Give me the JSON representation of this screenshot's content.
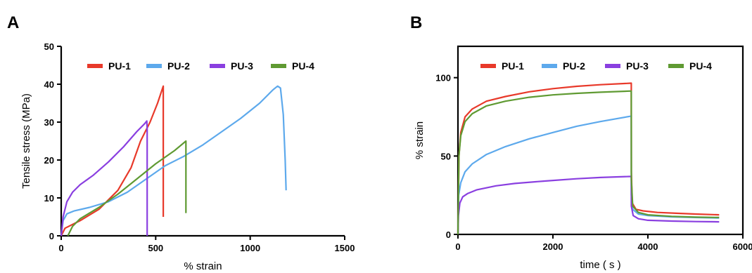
{
  "chart_data": [
    {
      "panel": "A",
      "type": "line",
      "xlabel": "% strain",
      "ylabel": "Tensile stress  (MPa)",
      "xlim": [
        0,
        1500
      ],
      "ylim": [
        0,
        50
      ],
      "xticks": [
        0,
        500,
        1000,
        1500
      ],
      "yticks": [
        0,
        10,
        20,
        30,
        40,
        50
      ],
      "frame": "left-bottom",
      "grid": false,
      "legend_position": "top",
      "series": [
        {
          "name": "PU-1",
          "color": "#e8392a",
          "points": [
            [
              0,
              0
            ],
            [
              20,
              2
            ],
            [
              100,
              4
            ],
            [
              200,
              7
            ],
            [
              300,
              12
            ],
            [
              370,
              18
            ],
            [
              420,
              25
            ],
            [
              470,
              30
            ],
            [
              510,
              35
            ],
            [
              540,
              39.5
            ],
            [
              540,
              5
            ]
          ]
        },
        {
          "name": "PU-2",
          "color": "#5da9ec",
          "points": [
            [
              0,
              0
            ],
            [
              10,
              4
            ],
            [
              30,
              5.8
            ],
            [
              70,
              6.6
            ],
            [
              150,
              7.5
            ],
            [
              250,
              9
            ],
            [
              350,
              11.5
            ],
            [
              450,
              15
            ],
            [
              550,
              18.5
            ],
            [
              650,
              21
            ],
            [
              750,
              24
            ],
            [
              850,
              27.5
            ],
            [
              950,
              31
            ],
            [
              1050,
              35
            ],
            [
              1120,
              38.5
            ],
            [
              1145,
              39.5
            ],
            [
              1160,
              39
            ],
            [
              1175,
              32
            ],
            [
              1185,
              20
            ],
            [
              1190,
              12
            ]
          ]
        },
        {
          "name": "PU-3",
          "color": "#8a3fe0",
          "points": [
            [
              0,
              0
            ],
            [
              10,
              5
            ],
            [
              30,
              9
            ],
            [
              60,
              11.5
            ],
            [
              100,
              13.5
            ],
            [
              170,
              16
            ],
            [
              250,
              19.5
            ],
            [
              330,
              23.5
            ],
            [
              400,
              27.5
            ],
            [
              440,
              29.5
            ],
            [
              453,
              30.3
            ],
            [
              455,
              28
            ],
            [
              455,
              0
            ]
          ]
        },
        {
          "name": "PU-4",
          "color": "#5f9a32",
          "points": [
            [
              35,
              0
            ],
            [
              60,
              2.5
            ],
            [
              100,
              4.5
            ],
            [
              200,
              7.5
            ],
            [
              300,
              11
            ],
            [
              400,
              15
            ],
            [
              500,
              19
            ],
            [
              600,
              22.5
            ],
            [
              660,
              25
            ],
            [
              660,
              6
            ]
          ]
        }
      ]
    },
    {
      "panel": "B",
      "type": "line",
      "xlabel": "time ( s )",
      "ylabel": "% strain",
      "xlim": [
        0,
        6000
      ],
      "ylim": [
        0,
        120
      ],
      "xticks": [
        0,
        2000,
        4000,
        6000
      ],
      "yticks": [
        0,
        50,
        100
      ],
      "frame": "box",
      "grid": false,
      "legend_position": "top",
      "series": [
        {
          "name": "PU-1",
          "color": "#e8392a",
          "points": [
            [
              0,
              0
            ],
            [
              20,
              50
            ],
            [
              60,
              65
            ],
            [
              150,
              75
            ],
            [
              300,
              80
            ],
            [
              600,
              85
            ],
            [
              1000,
              88
            ],
            [
              1500,
              91
            ],
            [
              2000,
              93
            ],
            [
              2500,
              94.5
            ],
            [
              3000,
              95.5
            ],
            [
              3650,
              96.5
            ],
            [
              3652,
              40
            ],
            [
              3670,
              20
            ],
            [
              3750,
              16
            ],
            [
              3900,
              15
            ],
            [
              4200,
              14
            ],
            [
              4600,
              13.5
            ],
            [
              5000,
              13
            ],
            [
              5500,
              12.5
            ]
          ]
        },
        {
          "name": "PU-2",
          "color": "#5da9ec",
          "points": [
            [
              0,
              0
            ],
            [
              15,
              25
            ],
            [
              60,
              33
            ],
            [
              150,
              40
            ],
            [
              300,
              45
            ],
            [
              600,
              51
            ],
            [
              1000,
              56
            ],
            [
              1500,
              61
            ],
            [
              2000,
              65
            ],
            [
              2500,
              69
            ],
            [
              3000,
              72
            ],
            [
              3650,
              75.5
            ],
            [
              3652,
              25
            ],
            [
              3680,
              16
            ],
            [
              3800,
              13
            ],
            [
              4000,
              12
            ],
            [
              4500,
              11.2
            ],
            [
              5000,
              10.8
            ],
            [
              5500,
              10.5
            ]
          ]
        },
        {
          "name": "PU-3",
          "color": "#8a3fe0",
          "points": [
            [
              0,
              0
            ],
            [
              10,
              12
            ],
            [
              40,
              20
            ],
            [
              100,
              24
            ],
            [
              200,
              26
            ],
            [
              400,
              28.5
            ],
            [
              800,
              31
            ],
            [
              1200,
              32.5
            ],
            [
              1800,
              34
            ],
            [
              2500,
              35.5
            ],
            [
              3000,
              36.3
            ],
            [
              3650,
              37
            ],
            [
              3652,
              18
            ],
            [
              3690,
              12
            ],
            [
              3800,
              10
            ],
            [
              4000,
              9
            ],
            [
              4500,
              8.5
            ],
            [
              5000,
              8.2
            ],
            [
              5500,
              8
            ]
          ]
        },
        {
          "name": "PU-4",
          "color": "#5f9a32",
          "points": [
            [
              0,
              0
            ],
            [
              20,
              50
            ],
            [
              60,
              63
            ],
            [
              150,
              72
            ],
            [
              300,
              77
            ],
            [
              600,
              82
            ],
            [
              1000,
              85
            ],
            [
              1500,
              87.5
            ],
            [
              2000,
              89
            ],
            [
              2500,
              90
            ],
            [
              3000,
              90.7
            ],
            [
              3650,
              91.5
            ],
            [
              3652,
              35
            ],
            [
              3680,
              18
            ],
            [
              3800,
              14
            ],
            [
              4000,
              12.5
            ],
            [
              4500,
              11.5
            ],
            [
              5000,
              11
            ],
            [
              5500,
              10.8
            ]
          ]
        }
      ]
    }
  ]
}
